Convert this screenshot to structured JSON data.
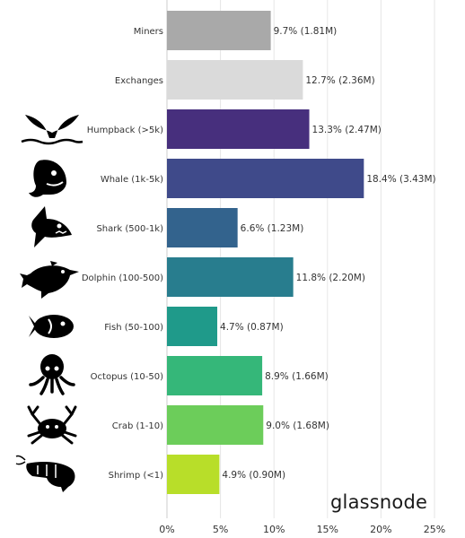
{
  "brand": "glassnode",
  "chart_data": {
    "type": "bar",
    "orientation": "horizontal",
    "title": "",
    "xlabel": "",
    "ylabel": "",
    "xlim": [
      0,
      25
    ],
    "xticks": [
      "0%",
      "5%",
      "10%",
      "15%",
      "20%",
      "25%"
    ],
    "grid": "vertical",
    "categories": [
      "Miners",
      "Exchanges",
      "Humpback (>5k)",
      "Whale (1k-5k)",
      "Shark (500-1k)",
      "Dolphin (100-500)",
      "Fish (50-100)",
      "Octopus (10-50)",
      "Crab (1-10)",
      "Shrimp (<1)"
    ],
    "values": [
      9.7,
      12.7,
      13.3,
      18.4,
      6.6,
      11.8,
      4.7,
      8.9,
      9.0,
      4.9
    ],
    "data_labels": [
      "9.7% (1.81M)",
      "12.7% (2.36M)",
      "13.3% (2.47M)",
      "18.4% (3.43M)",
      "6.6% (1.23M)",
      "11.8% (2.20M)",
      "4.7% (0.87M)",
      "8.9% (1.66M)",
      "9.0% (1.68M)",
      "4.9% (0.90M)"
    ],
    "colors": [
      "#a9a9a9",
      "#dadada",
      "#472f7d",
      "#3f4a8a",
      "#33638d",
      "#287d8e",
      "#1f9a8a",
      "#35b779",
      "#6ccd5a",
      "#b8de29"
    ],
    "icons": [
      "",
      "",
      "whale-tail-icon",
      "whale-icon",
      "shark-icon",
      "dolphin-icon",
      "fish-icon",
      "octopus-icon",
      "crab-icon",
      "shrimp-icon"
    ]
  }
}
